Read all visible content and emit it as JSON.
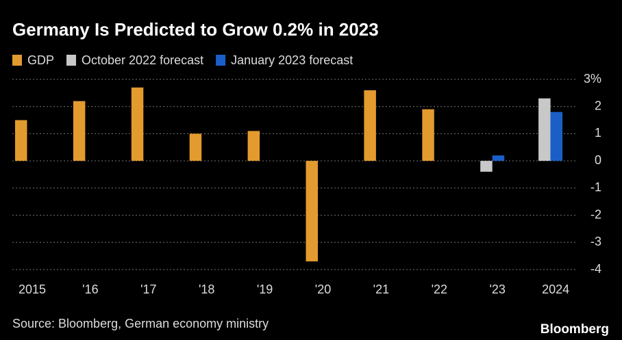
{
  "chart_data": {
    "type": "bar",
    "title": "Germany Is Predicted to Grow 0.2% in 2023",
    "categories": [
      "2015",
      "'16",
      "'17",
      "'18",
      "'19",
      "'20",
      "'21",
      "'22",
      "'23",
      "2024"
    ],
    "series": [
      {
        "name": "GDP",
        "color": "#e39a2f",
        "values": [
          1.5,
          2.2,
          2.7,
          1.0,
          1.1,
          -3.7,
          2.6,
          1.9,
          null,
          null
        ]
      },
      {
        "name": "October 2022 forecast",
        "color": "#c8c8c8",
        "values": [
          null,
          null,
          null,
          null,
          null,
          null,
          null,
          null,
          -0.4,
          2.3
        ]
      },
      {
        "name": "January 2023 forecast",
        "color": "#1a5fc8",
        "values": [
          null,
          null,
          null,
          null,
          null,
          null,
          null,
          null,
          0.2,
          1.8
        ]
      }
    ],
    "ylim": [
      -4,
      3
    ],
    "yticks": [
      -4,
      -3,
      -2,
      -1,
      0,
      1,
      2,
      {
        "value": 3,
        "label": "3%"
      }
    ],
    "grid": true,
    "source": "Source: Bloomberg, German economy ministry",
    "brand": "Bloomberg"
  }
}
